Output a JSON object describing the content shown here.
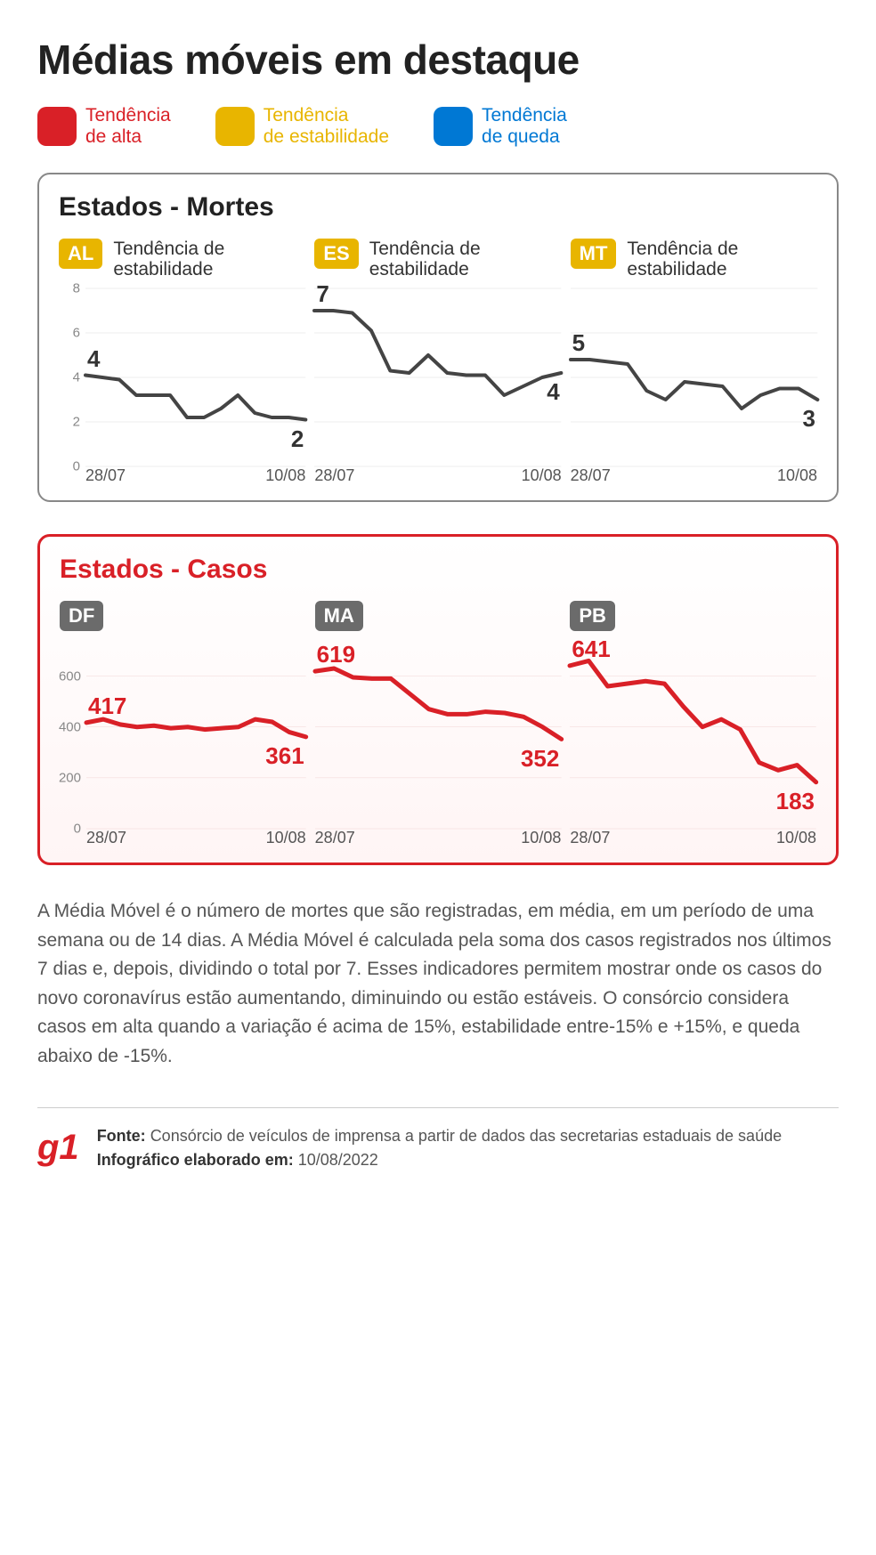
{
  "title": "Médias móveis em destaque",
  "legend": [
    {
      "label": "Tendência\nde alta",
      "color": "#d92027"
    },
    {
      "label": "Tendência\nde estabilidade",
      "color": "#e8b500"
    },
    {
      "label": "Tendência\nde queda",
      "color": "#0078d4"
    }
  ],
  "panels": {
    "mortes": {
      "title": "Estados - Mortes",
      "title_color": "#222222",
      "border_color": "#888888",
      "line_color": "#444444",
      "line_width": 4,
      "badge_bg": "#e8b500",
      "badge_text_color": "#ffffff",
      "value_label_color": "#333333",
      "grid_color": "#dddddd",
      "ylim": [
        0,
        8
      ],
      "yticks": [
        0,
        2,
        4,
        6,
        8
      ],
      "x_start": "28/07",
      "x_end": "10/08",
      "charts": [
        {
          "state": "AL",
          "trend": "Tendência de\nestabilidade",
          "start_value": "4",
          "end_value": "2",
          "data": [
            4.1,
            4.0,
            3.9,
            3.2,
            3.2,
            3.2,
            2.2,
            2.2,
            2.6,
            3.2,
            2.4,
            2.2,
            2.2,
            2.1
          ]
        },
        {
          "state": "ES",
          "trend": "Tendência de\nestabilidade",
          "start_value": "7",
          "end_value": "4",
          "data": [
            7.0,
            7.0,
            6.9,
            6.1,
            4.3,
            4.2,
            5.0,
            4.2,
            4.1,
            4.1,
            3.2,
            3.6,
            4.0,
            4.2
          ]
        },
        {
          "state": "MT",
          "trend": "Tendência de\nestabilidade",
          "start_value": "5",
          "end_value": "3",
          "data": [
            4.8,
            4.8,
            4.7,
            4.6,
            3.4,
            3.0,
            3.8,
            3.7,
            3.6,
            2.6,
            3.2,
            3.5,
            3.5,
            3.0
          ]
        }
      ]
    },
    "casos": {
      "title": "Estados - Casos",
      "title_color": "#d92027",
      "border_color": "#d92027",
      "line_color": "#d92027",
      "line_width": 5,
      "badge_bg": "#6b6b6b",
      "badge_text_color": "#ffffff",
      "value_label_color": "#d92027",
      "grid_color": "#f0d5d5",
      "ylim": [
        0,
        700
      ],
      "yticks": [
        0,
        200,
        400,
        600
      ],
      "x_start": "28/07",
      "x_end": "10/08",
      "charts": [
        {
          "state": "DF",
          "trend": "",
          "start_value": "417",
          "end_value": "361",
          "data": [
            417,
            430,
            410,
            400,
            405,
            395,
            400,
            390,
            395,
            400,
            430,
            420,
            380,
            361
          ]
        },
        {
          "state": "MA",
          "trend": "",
          "start_value": "619",
          "end_value": "352",
          "data": [
            619,
            630,
            595,
            590,
            590,
            530,
            470,
            450,
            450,
            460,
            455,
            440,
            400,
            352
          ]
        },
        {
          "state": "PB",
          "trend": "",
          "start_value": "641",
          "end_value": "183",
          "data": [
            641,
            660,
            560,
            570,
            580,
            570,
            480,
            400,
            430,
            390,
            260,
            230,
            250,
            183
          ]
        }
      ]
    }
  },
  "description": "A Média Móvel é o número de mortes que são registradas, em média, em um período de uma semana ou de 14 dias. A Média Móvel é calculada pela soma dos casos registrados nos últimos 7 dias e, depois, dividindo o total por 7. Esses indicadores permitem mostrar onde os casos do novo coronavírus estão aumentando, diminuindo ou estão estáveis. O consórcio considera casos em alta quando a variação é acima de 15%, estabilidade entre-15% e +15%, e queda abaixo de -15%.",
  "footer": {
    "brand": "g1",
    "brand_color": "#d92027",
    "source_label": "Fonte:",
    "source": "Consórcio de veículos de imprensa a partir de dados das secretarias estaduais de saúde",
    "date_label": "Infográfico elaborado em:",
    "date": "10/08/2022"
  }
}
